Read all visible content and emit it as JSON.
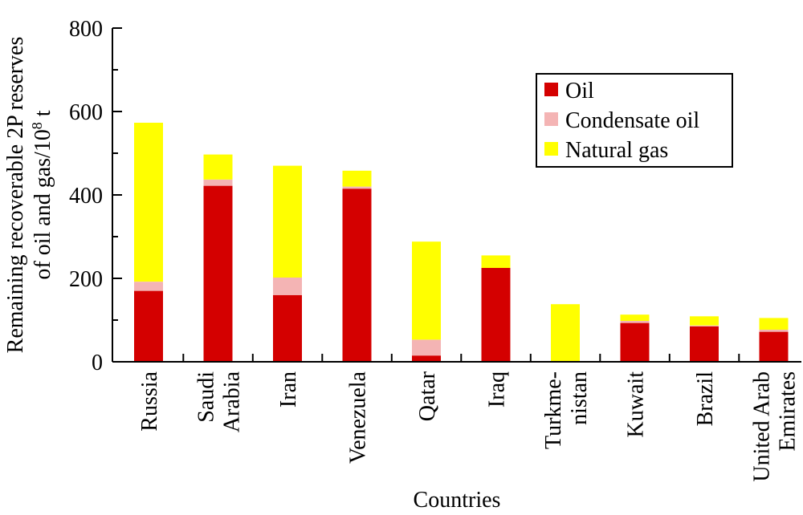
{
  "chart_data": {
    "type": "bar",
    "stacked": true,
    "categories": [
      [
        "Russia"
      ],
      [
        "Saudi",
        "Arabia"
      ],
      [
        "Iran"
      ],
      [
        "Venezuela"
      ],
      [
        "Qatar"
      ],
      [
        "Iraq"
      ],
      [
        "Turkme-",
        "nistan"
      ],
      [
        "Kuwait"
      ],
      [
        "Brazil"
      ],
      [
        "United Arab",
        "Emirates"
      ]
    ],
    "series": [
      {
        "name": "Oil",
        "color": "#d40000",
        "values": [
          170,
          422,
          160,
          415,
          15,
          225,
          0,
          93,
          85,
          72
        ]
      },
      {
        "name": "Condensate oil",
        "color": "#f4b4b4",
        "values": [
          22,
          15,
          42,
          5,
          38,
          0,
          0,
          5,
          2,
          5
        ]
      },
      {
        "name": "Natural gas",
        "color": "#ffff00",
        "values": [
          381,
          60,
          268,
          38,
          235,
          30,
          138,
          15,
          22,
          28
        ]
      }
    ],
    "xlabel": "Countries",
    "ylabel": [
      "Remaining recoverable 2P reserves",
      "of oil and gas/10",
      "8",
      " t"
    ],
    "ylim": [
      0,
      800
    ],
    "yticks": [
      "0",
      "200",
      "400",
      "600",
      "800"
    ],
    "legend_position": "top-right",
    "grid": false
  }
}
